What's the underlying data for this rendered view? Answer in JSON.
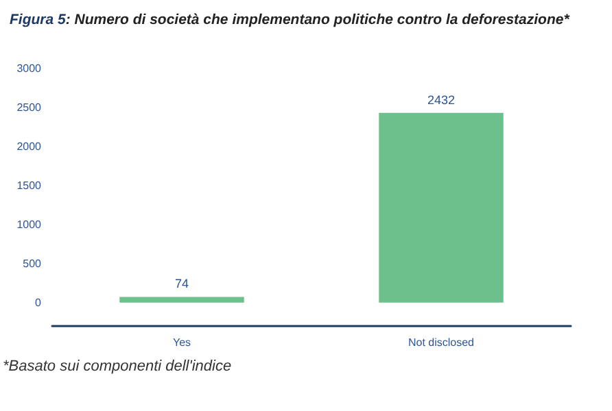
{
  "chart_data": {
    "type": "bar",
    "title": "Figura 5: Numero di società che implementano politiche contro la deforestazione*",
    "categories": [
      "Yes",
      "Not disclosed"
    ],
    "values": [
      74,
      2432
    ],
    "color": "#6cc08b",
    "data_labels": true,
    "ylim": [
      -300,
      3000
    ],
    "yticks": [
      0,
      500,
      1000,
      1500,
      2000,
      2500,
      3000
    ],
    "grid": false,
    "annotations": [
      "*Basato sui componenti dell'indice"
    ]
  }
}
